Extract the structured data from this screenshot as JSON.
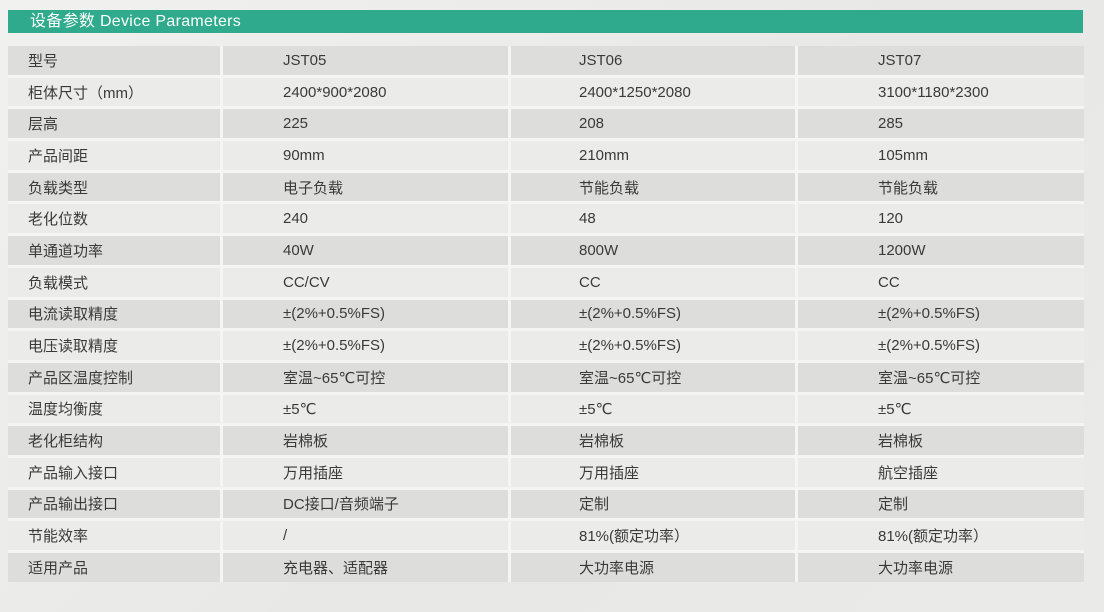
{
  "header": {
    "title": "设备参数 Device Parameters"
  },
  "colors": {
    "accent_green": "#2faa8c",
    "row_dark": "#dddddb",
    "row_light": "#ebebe9",
    "text": "#3a3a3a"
  },
  "table": {
    "rows": [
      {
        "label": "型号",
        "values": [
          "JST05",
          "JST06",
          "JST07"
        ]
      },
      {
        "label": "柜体尺寸（mm）",
        "values": [
          "2400*900*2080",
          "2400*1250*2080",
          "3100*1180*2300"
        ]
      },
      {
        "label": "层高",
        "values": [
          "225",
          "208",
          "285"
        ]
      },
      {
        "label": "产品间距",
        "values": [
          "90mm",
          "210mm",
          "105mm"
        ]
      },
      {
        "label": "负载类型",
        "values": [
          "电子负载",
          "节能负载",
          "节能负载"
        ]
      },
      {
        "label": "老化位数",
        "values": [
          "240",
          "48",
          "120"
        ]
      },
      {
        "label": "单通道功率",
        "values": [
          "40W",
          "800W",
          "1200W"
        ]
      },
      {
        "label": "负载模式",
        "values": [
          "CC/CV",
          "CC",
          "CC"
        ]
      },
      {
        "label": "电流读取精度",
        "values": [
          "±(2%+0.5%FS)",
          "±(2%+0.5%FS)",
          "±(2%+0.5%FS)"
        ]
      },
      {
        "label": "电压读取精度",
        "values": [
          "±(2%+0.5%FS)",
          "±(2%+0.5%FS)",
          "±(2%+0.5%FS)"
        ]
      },
      {
        "label": "产品区温度控制",
        "values": [
          "室温~65℃可控",
          "室温~65℃可控",
          "室温~65℃可控"
        ]
      },
      {
        "label": "温度均衡度",
        "values": [
          "±5℃",
          "±5℃",
          "±5℃"
        ]
      },
      {
        "label": "老化柜结构",
        "values": [
          "岩棉板",
          "岩棉板",
          "岩棉板"
        ]
      },
      {
        "label": "产品输入接口",
        "values": [
          "万用插座",
          "万用插座",
          "航空插座"
        ]
      },
      {
        "label": "产品输出接口",
        "values": [
          "DC接口/音频端子",
          "定制",
          "定制"
        ]
      },
      {
        "label": "节能效率",
        "values": [
          "/",
          "81%(额定功率）",
          "81%(额定功率）"
        ]
      },
      {
        "label": "适用产品",
        "values": [
          "充电器、适配器",
          "大功率电源",
          "大功率电源"
        ]
      }
    ]
  }
}
